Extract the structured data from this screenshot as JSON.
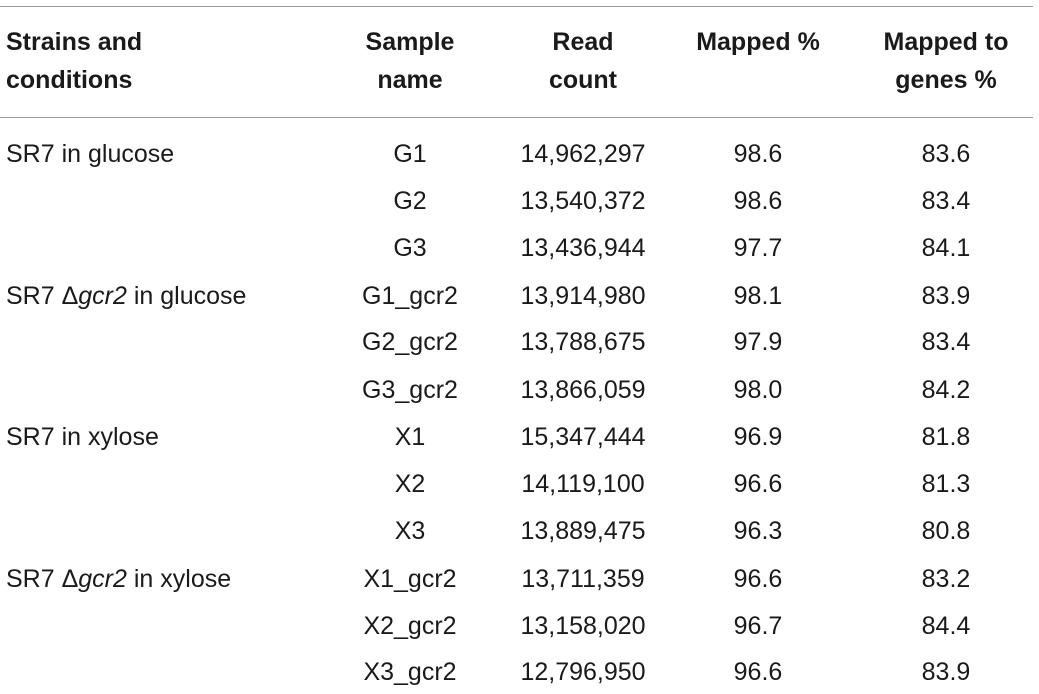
{
  "table": {
    "headers": [
      {
        "line1": "Strains and",
        "line2": "conditions"
      },
      {
        "line1": "Sample",
        "line2": "name"
      },
      {
        "line1": "Read",
        "line2": "count"
      },
      {
        "line1": "Mapped %",
        "line2": ""
      },
      {
        "line1": "Mapped to",
        "line2": "genes %"
      }
    ],
    "groups": [
      {
        "prefix": "SR7 in glucose",
        "gene": "",
        "suffix": ""
      },
      {
        "prefix": "SR7 Δ",
        "gene": "gcr2",
        "suffix": " in glucose"
      },
      {
        "prefix": "SR7 in xylose",
        "gene": "",
        "suffix": ""
      },
      {
        "prefix": "SR7 Δ",
        "gene": "gcr2",
        "suffix": " in xylose"
      }
    ],
    "rows": [
      {
        "sample": "G1",
        "reads": "14,962,297",
        "mapped": "98.6",
        "genes": "83.6"
      },
      {
        "sample": "G2",
        "reads": "13,540,372",
        "mapped": "98.6",
        "genes": "83.4"
      },
      {
        "sample": "G3",
        "reads": "13,436,944",
        "mapped": "97.7",
        "genes": "84.1"
      },
      {
        "sample": "G1_gcr2",
        "reads": "13,914,980",
        "mapped": "98.1",
        "genes": "83.9"
      },
      {
        "sample": "G2_gcr2",
        "reads": "13,788,675",
        "mapped": "97.9",
        "genes": "83.4"
      },
      {
        "sample": "G3_gcr2",
        "reads": "13,866,059",
        "mapped": "98.0",
        "genes": "84.2"
      },
      {
        "sample": "X1",
        "reads": "15,347,444",
        "mapped": "96.9",
        "genes": "81.8"
      },
      {
        "sample": "X2",
        "reads": "14,119,100",
        "mapped": "96.6",
        "genes": "81.3"
      },
      {
        "sample": "X3",
        "reads": "13,889,475",
        "mapped": "96.3",
        "genes": "80.8"
      },
      {
        "sample": "X1_gcr2",
        "reads": "13,711,359",
        "mapped": "96.6",
        "genes": "83.2"
      },
      {
        "sample": "X2_gcr2",
        "reads": "13,158,020",
        "mapped": "96.7",
        "genes": "84.4"
      },
      {
        "sample": "X3_gcr2",
        "reads": "12,796,950",
        "mapped": "96.6",
        "genes": "83.9"
      }
    ]
  }
}
